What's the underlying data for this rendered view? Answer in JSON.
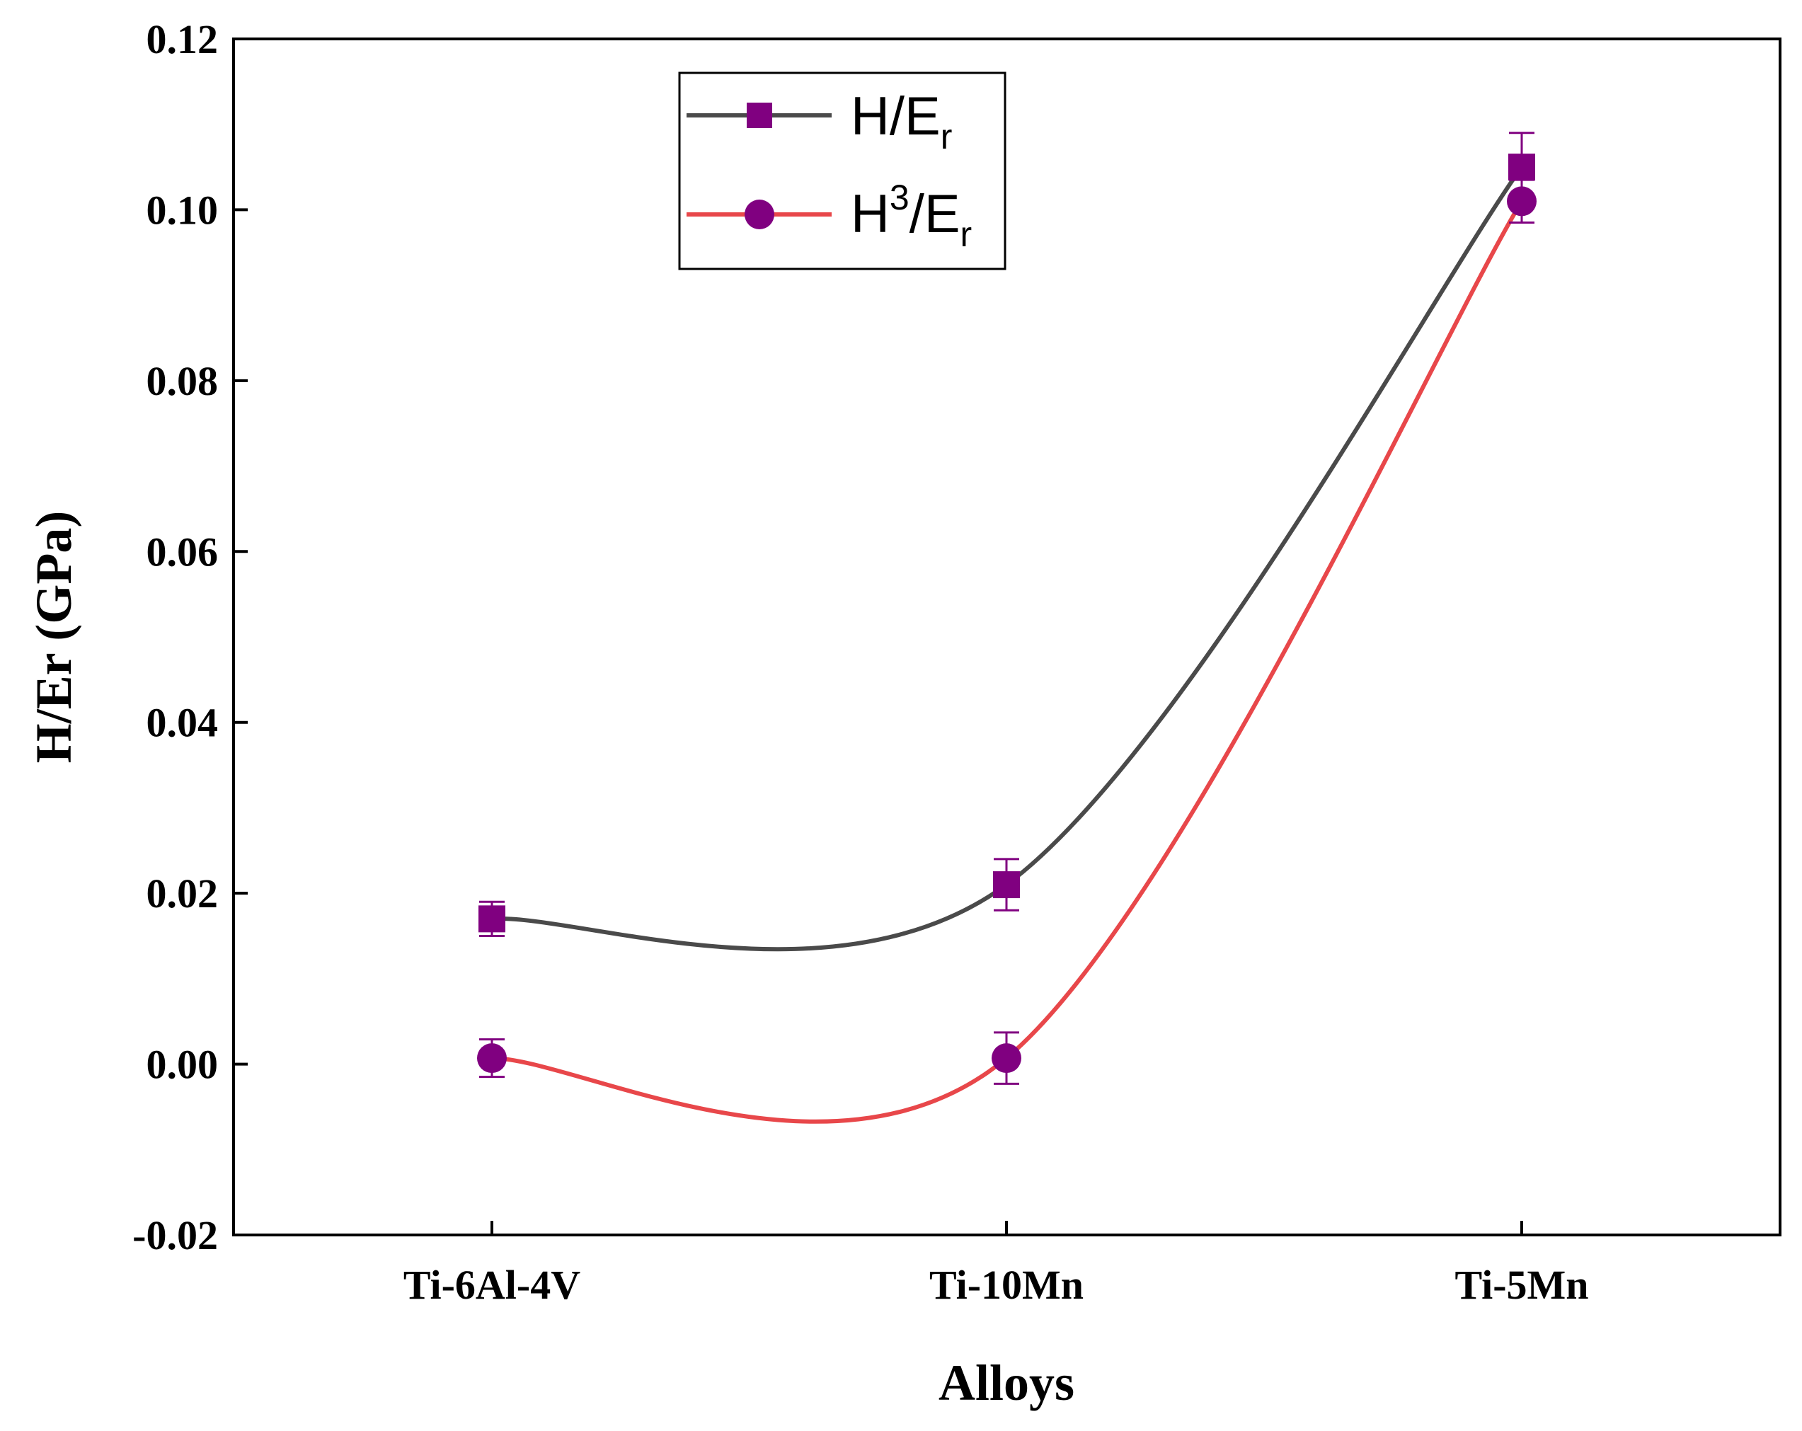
{
  "chart_data": {
    "type": "line",
    "title": "",
    "xlabel": "Alloys",
    "ylabel": "H/Er (GPa)",
    "categories": [
      "Ti-6Al-4V",
      "Ti-10Mn",
      "Ti-5Mn"
    ],
    "ylim": [
      -0.02,
      0.12
    ],
    "yticks": [
      -0.02,
      0.0,
      0.02,
      0.04,
      0.06,
      0.08,
      0.1,
      0.12
    ],
    "ytick_labels": [
      "-0.02",
      "0.00",
      "0.02",
      "0.04",
      "0.06",
      "0.08",
      "0.10",
      "0.12"
    ],
    "grid": false,
    "legend_position": "top-center",
    "series": [
      {
        "name": "H/Er",
        "legend_main": "H/E",
        "legend_sup": "",
        "legend_sub": "r",
        "marker": "square",
        "line_color": "#4a4a4a",
        "marker_color": "#800080",
        "values": [
          0.017,
          0.021,
          0.105
        ],
        "errors": [
          0.002,
          0.003,
          0.004
        ]
      },
      {
        "name": "H3/Er",
        "legend_main": "H",
        "legend_sup": "3",
        "legend_tail": "/E",
        "legend_sub": "r",
        "marker": "circle",
        "line_color": "#e8474a",
        "marker_color": "#800080",
        "values": [
          0.0007,
          0.0007,
          0.101
        ],
        "errors": [
          0.0022,
          0.003,
          0.0025
        ]
      }
    ]
  }
}
